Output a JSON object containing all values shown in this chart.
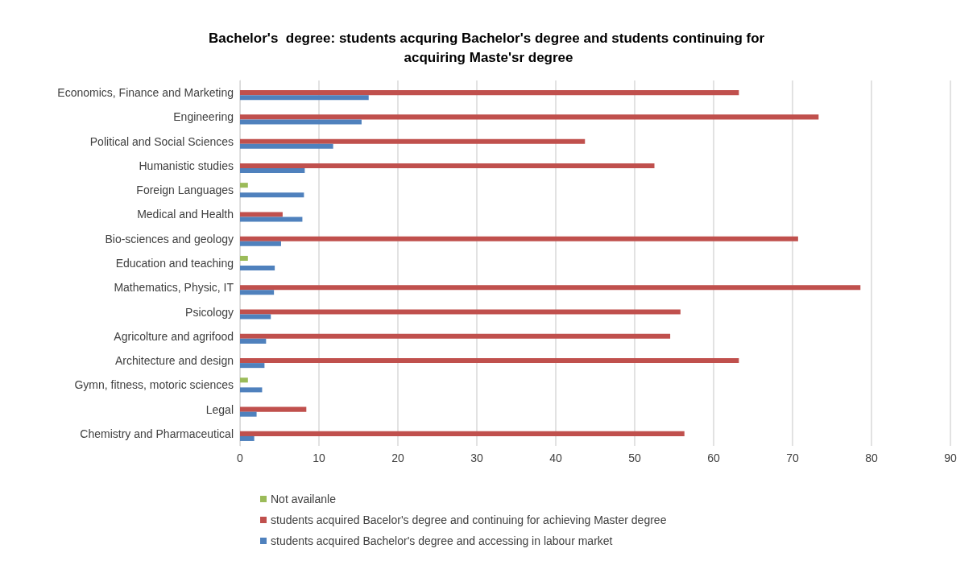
{
  "chart_data": {
    "type": "bar",
    "orientation": "horizontal",
    "title": "Bachelor's  degree: students acquring Bachelor's degree and students continuing for acquiring Maste'sr degree",
    "categories": [
      "Economics, Finance and Marketing",
      "Engineering",
      "Political and Social Sciences",
      "Humanistic studies",
      "Foreign Languages",
      "Medical and Health",
      "Bio-sciences and geology",
      "Education and teaching",
      "Mathematics, Physic, IT",
      "Psicology",
      "Agricolture and agrifood",
      "Architecture and design",
      "Gymn, fitness, motoric sciences",
      "Legal",
      "Chemistry and Pharmaceutical"
    ],
    "series": [
      {
        "name": "Not availanle",
        "color": "#9bbb59",
        "values": [
          null,
          null,
          null,
          null,
          1.0,
          null,
          null,
          1.0,
          null,
          null,
          null,
          null,
          1.0,
          null,
          null
        ]
      },
      {
        "name": "students acquired Bacelor's degree and continuing for achieving Master degree",
        "color": "#c0504d",
        "values": [
          63.2,
          73.3,
          43.7,
          52.5,
          null,
          5.4,
          70.7,
          null,
          78.6,
          55.8,
          54.5,
          63.2,
          null,
          8.4,
          56.3
        ]
      },
      {
        "name": "students acquired Bachelor's degree and accessing in labour market",
        "color": "#4f81bd",
        "values": [
          16.3,
          15.4,
          11.8,
          8.2,
          8.1,
          7.9,
          5.2,
          4.4,
          4.3,
          3.9,
          3.3,
          3.1,
          2.8,
          2.1,
          1.8
        ]
      }
    ],
    "xlim": [
      0,
      90
    ],
    "xticks": [
      0,
      10,
      20,
      30,
      40,
      50,
      60,
      70,
      80,
      90
    ],
    "grid": "x",
    "legend": "bottom left"
  }
}
